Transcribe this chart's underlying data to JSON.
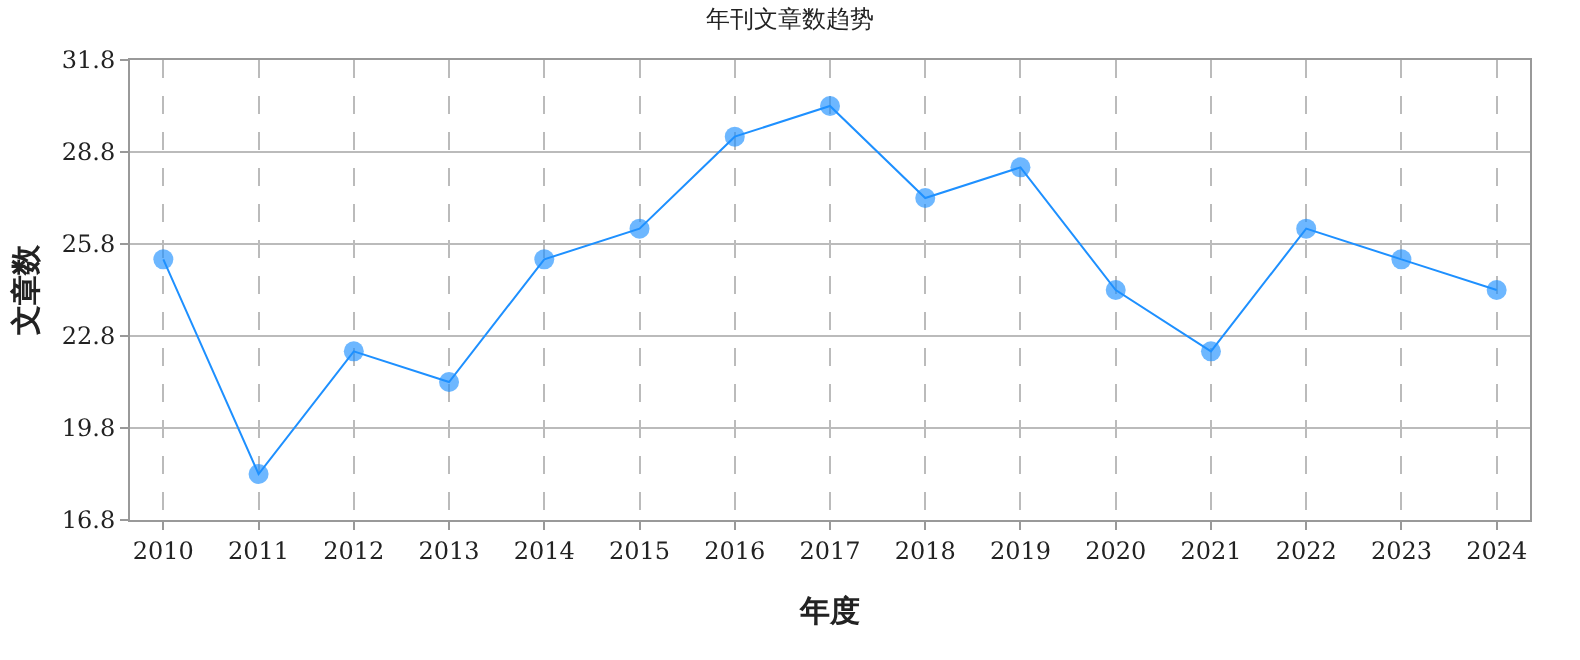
{
  "chart_data": {
    "type": "line",
    "title": "年刊文章数趋势",
    "xlabel": "年度",
    "ylabel": "文章数",
    "categories": [
      "2010",
      "2011",
      "2012",
      "2013",
      "2014",
      "2015",
      "2016",
      "2017",
      "2018",
      "2019",
      "2020",
      "2021",
      "2022",
      "2023",
      "2024"
    ],
    "series": [
      {
        "color": "#1e90ff",
        "values": [
          25.3,
          18.3,
          22.3,
          21.3,
          25.3,
          26.3,
          29.3,
          30.3,
          27.3,
          28.3,
          24.3,
          22.3,
          26.3,
          25.3,
          24.3
        ]
      }
    ],
    "ylim": [
      16.8,
      31.8
    ],
    "yticks": [
      16.8,
      19.8,
      22.8,
      25.8,
      28.8,
      31.8
    ],
    "grid": true,
    "legend": false,
    "marker": "circle",
    "line_style": "solid"
  }
}
